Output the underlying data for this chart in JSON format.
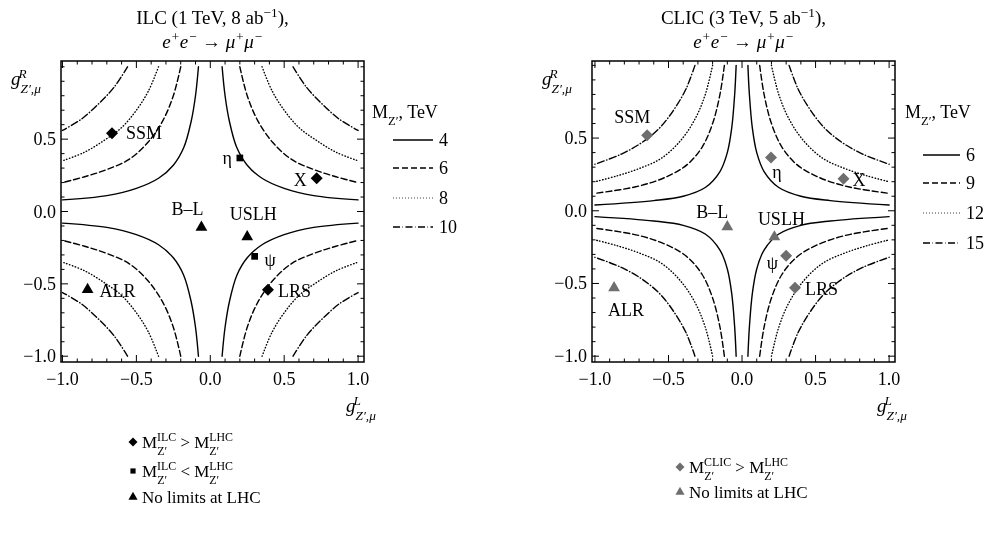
{
  "chart_data": [
    {
      "type": "line",
      "title": "ILC (1 TeV, 8 ab$^{−1}$),",
      "subtitle": "e$^{+}$e$^{−}$ → μ$^{+}$μ$^{−}$",
      "xlabel": "g$_{Z′,μ}$$^{L}$",
      "ylabel": "g$_{Z′,μ}$$^{R}$",
      "legend_title": "M$_{Z′}$, TeV",
      "legend": "right",
      "xlim": [
        -1.01,
        1.04
      ],
      "ylim": [
        -1.04,
        1.04
      ],
      "xticks": [
        {
          "value": -1,
          "label": "−1.0"
        },
        {
          "value": -0.9,
          "label": null
        },
        {
          "value": -0.8,
          "label": null
        },
        {
          "value": -0.7,
          "label": null
        },
        {
          "value": -0.6,
          "label": null
        },
        {
          "value": -0.5,
          "label": "−0.5"
        },
        {
          "value": -0.4,
          "label": null
        },
        {
          "value": -0.3,
          "label": null
        },
        {
          "value": -0.2,
          "label": null
        },
        {
          "value": -0.1,
          "label": null
        },
        {
          "value": 0,
          "label": "0.0"
        },
        {
          "value": 0.1,
          "label": null
        },
        {
          "value": 0.2,
          "label": null
        },
        {
          "value": 0.3,
          "label": null
        },
        {
          "value": 0.4,
          "label": null
        },
        {
          "value": 0.5,
          "label": "0.5"
        },
        {
          "value": 0.6,
          "label": null
        },
        {
          "value": 0.7,
          "label": null
        },
        {
          "value": 0.8,
          "label": null
        },
        {
          "value": 0.9,
          "label": null
        },
        {
          "value": 1,
          "label": "1.0"
        }
      ],
      "yticks": [
        {
          "value": -1,
          "label": "−1.0"
        },
        {
          "value": -0.9,
          "label": null
        },
        {
          "value": -0.8,
          "label": null
        },
        {
          "value": -0.7,
          "label": null
        },
        {
          "value": -0.6,
          "label": null
        },
        {
          "value": -0.5,
          "label": "−0.5"
        },
        {
          "value": -0.4,
          "label": null
        },
        {
          "value": -0.3,
          "label": null
        },
        {
          "value": -0.2,
          "label": null
        },
        {
          "value": -0.1,
          "label": null
        },
        {
          "value": 0,
          "label": "0.0"
        },
        {
          "value": 0.1,
          "label": null
        },
        {
          "value": 0.2,
          "label": null
        },
        {
          "value": 0.3,
          "label": null
        },
        {
          "value": 0.4,
          "label": null
        },
        {
          "value": 0.5,
          "label": "0.5"
        },
        {
          "value": 0.6,
          "label": null
        },
        {
          "value": 0.7,
          "label": null
        },
        {
          "value": 0.8,
          "label": null
        },
        {
          "value": 0.9,
          "label": null
        },
        {
          "value": 1,
          "label": null
        }
      ],
      "series": [
        {
          "name": "4",
          "type": "line",
          "line_style": "solid",
          "color": "#000000",
          "x": [
            0.08,
            0.1,
            0.13,
            0.18,
            0.25,
            0.35,
            0.5,
            0.7,
            1.0,
            null,
            -0.08,
            -0.1,
            -0.13,
            -0.18,
            -0.25,
            -0.35,
            -0.5,
            -0.7,
            -1.0,
            null,
            -0.08,
            -0.1,
            -0.13,
            -0.18,
            -0.25,
            -0.35,
            -0.5,
            -0.7,
            -1.0,
            null,
            0.08,
            0.1,
            0.13,
            0.18,
            0.25,
            0.35,
            0.5,
            0.7,
            1.0
          ],
          "values": [
            1.0,
            0.8,
            0.62,
            0.44,
            0.32,
            0.23,
            0.16,
            0.11,
            0.08,
            null,
            1.0,
            0.8,
            0.62,
            0.44,
            0.32,
            0.23,
            0.16,
            0.11,
            0.08,
            null,
            -1.0,
            -0.8,
            -0.62,
            -0.44,
            -0.32,
            -0.23,
            -0.16,
            -0.11,
            -0.08,
            null,
            -1.0,
            -0.8,
            -0.62,
            -0.44,
            -0.32,
            -0.23,
            -0.16,
            -0.11,
            -0.08
          ]
        },
        {
          "name": "6",
          "type": "line",
          "line_style": "dashed",
          "color": "#000000",
          "x": [
            0.2,
            0.25,
            0.32,
            0.42,
            0.55,
            0.7,
            0.85,
            1.0,
            null,
            -0.2,
            -0.25,
            -0.32,
            -0.42,
            -0.55,
            -0.7,
            -0.85,
            -1.0,
            null,
            -0.2,
            -0.25,
            -0.32,
            -0.42,
            -0.55,
            -0.7,
            -0.85,
            -1.0,
            null,
            0.2,
            0.25,
            0.32,
            0.42,
            0.55,
            0.7,
            0.85,
            1.0
          ],
          "values": [
            1.0,
            0.8,
            0.63,
            0.48,
            0.36,
            0.29,
            0.24,
            0.2,
            null,
            1.0,
            0.8,
            0.63,
            0.48,
            0.36,
            0.29,
            0.24,
            0.2,
            null,
            -1.0,
            -0.8,
            -0.63,
            -0.48,
            -0.36,
            -0.29,
            -0.24,
            -0.2,
            null,
            -1.0,
            -0.8,
            -0.63,
            -0.48,
            -0.36,
            -0.29,
            -0.24,
            -0.2
          ]
        },
        {
          "name": "8",
          "type": "line",
          "line_style": "dotted",
          "color": "#000000",
          "x": [
            0.35,
            0.42,
            0.5,
            0.6,
            0.72,
            0.85,
            1.0,
            null,
            -0.35,
            -0.42,
            -0.5,
            -0.6,
            -0.72,
            -0.85,
            -1.0,
            null,
            -0.35,
            -0.42,
            -0.5,
            -0.6,
            -0.72,
            -0.85,
            -1.0,
            null,
            0.35,
            0.42,
            0.5,
            0.6,
            0.72,
            0.85,
            1.0
          ],
          "values": [
            1.0,
            0.83,
            0.7,
            0.58,
            0.49,
            0.41,
            0.35,
            null,
            1.0,
            0.83,
            0.7,
            0.58,
            0.49,
            0.41,
            0.35,
            null,
            -1.0,
            -0.83,
            -0.7,
            -0.58,
            -0.49,
            -0.41,
            -0.35,
            null,
            -1.0,
            -0.83,
            -0.7,
            -0.58,
            -0.49,
            -0.41,
            -0.35
          ]
        },
        {
          "name": "10",
          "type": "line",
          "line_style": "dashdot",
          "color": "#000000",
          "x": [
            0.56,
            0.65,
            0.75,
            0.87,
            1.0,
            null,
            -0.56,
            -0.65,
            -0.75,
            -0.87,
            -1.0,
            null,
            -0.56,
            -0.65,
            -0.75,
            -0.87,
            -1.0,
            null,
            0.56,
            0.65,
            0.75,
            0.87,
            1.0
          ],
          "values": [
            1.0,
            0.86,
            0.75,
            0.64,
            0.56,
            null,
            1.0,
            0.86,
            0.75,
            0.64,
            0.56,
            null,
            -1.0,
            -0.86,
            -0.75,
            -0.64,
            -0.56,
            null,
            -1.0,
            -0.86,
            -0.75,
            -0.64,
            -0.56
          ]
        },
        {
          "name": "M$_{Z′}$$^{ILC}$ > M$_{Z′}$$^{LHC}$",
          "type": "scatter",
          "marker": "diamond",
          "color": "#000000",
          "x": [
            -0.665,
            0.72,
            0.39
          ],
          "values": [
            0.54,
            0.23,
            -0.54
          ]
        },
        {
          "name": "M$_{Z′}$$^{ILC}$ < M$_{Z′}$$^{LHC}$",
          "type": "scatter",
          "marker": "square",
          "color": "#000000",
          "x": [
            0.2,
            0.3
          ],
          "values": [
            0.37,
            -0.31
          ]
        },
        {
          "name": "No limits at LHC",
          "type": "scatter",
          "marker": "triangle",
          "color": "#000000",
          "x": [
            -0.06,
            0.25,
            -0.83
          ],
          "values": [
            -0.11,
            -0.175,
            -0.54
          ]
        }
      ],
      "annotations": [
        {
          "text": "SSM",
          "x": -0.665,
          "y": 0.54
        },
        {
          "text": "η",
          "x": 0.2,
          "y": 0.37
        },
        {
          "text": "X",
          "x": 0.72,
          "y": 0.23
        },
        {
          "text": "B–L",
          "x": -0.06,
          "y": -0.11
        },
        {
          "text": "USLH",
          "x": 0.25,
          "y": -0.175
        },
        {
          "text": "ψ",
          "x": 0.3,
          "y": -0.31
        },
        {
          "text": "LRS",
          "x": 0.39,
          "y": -0.54
        },
        {
          "text": "ALR",
          "x": -0.83,
          "y": -0.54
        }
      ]
    },
    {
      "type": "line",
      "title": "CLIC (3 TeV, 5 ab$^{−1}$),",
      "subtitle": "e$^{+}$e$^{−}$ → μ$^{+}$μ$^{−}$",
      "xlabel": "g$_{Z′,μ}$$^{L}$",
      "ylabel": "g$_{Z′,μ}$$^{R}$",
      "legend_title": "M$_{Z′}$, TeV",
      "legend": "right",
      "xlim": [
        -1.02,
        1.04
      ],
      "ylim": [
        -1.04,
        1.03
      ],
      "xticks": [
        {
          "value": -1,
          "label": "−1.0"
        },
        {
          "value": -0.9,
          "label": null
        },
        {
          "value": -0.8,
          "label": null
        },
        {
          "value": -0.7,
          "label": null
        },
        {
          "value": -0.6,
          "label": null
        },
        {
          "value": -0.5,
          "label": "−0.5"
        },
        {
          "value": -0.4,
          "label": null
        },
        {
          "value": -0.3,
          "label": null
        },
        {
          "value": -0.2,
          "label": null
        },
        {
          "value": -0.1,
          "label": null
        },
        {
          "value": 0,
          "label": "0.0"
        },
        {
          "value": 0.1,
          "label": null
        },
        {
          "value": 0.2,
          "label": null
        },
        {
          "value": 0.3,
          "label": null
        },
        {
          "value": 0.4,
          "label": null
        },
        {
          "value": 0.5,
          "label": "0.5"
        },
        {
          "value": 0.6,
          "label": null
        },
        {
          "value": 0.7,
          "label": null
        },
        {
          "value": 0.8,
          "label": null
        },
        {
          "value": 0.9,
          "label": null
        },
        {
          "value": 1,
          "label": "1.0"
        }
      ],
      "yticks": [
        {
          "value": -1,
          "label": "−1.0"
        },
        {
          "value": -0.9,
          "label": null
        },
        {
          "value": -0.8,
          "label": null
        },
        {
          "value": -0.7,
          "label": null
        },
        {
          "value": -0.6,
          "label": null
        },
        {
          "value": -0.5,
          "label": "−0.5"
        },
        {
          "value": -0.4,
          "label": null
        },
        {
          "value": -0.3,
          "label": null
        },
        {
          "value": -0.2,
          "label": null
        },
        {
          "value": -0.1,
          "label": null
        },
        {
          "value": 0,
          "label": "0.0"
        },
        {
          "value": 0.1,
          "label": null
        },
        {
          "value": 0.2,
          "label": null
        },
        {
          "value": 0.3,
          "label": null
        },
        {
          "value": 0.4,
          "label": null
        },
        {
          "value": 0.5,
          "label": "0.5"
        },
        {
          "value": 0.6,
          "label": null
        },
        {
          "value": 0.7,
          "label": null
        },
        {
          "value": 0.8,
          "label": null
        },
        {
          "value": 0.9,
          "label": null
        },
        {
          "value": 1,
          "label": null
        }
      ],
      "series": [
        {
          "name": "6",
          "type": "line",
          "line_style": "solid",
          "color": "#000000",
          "x": [
            0.04,
            0.05,
            0.07,
            0.1,
            0.15,
            0.25,
            0.4,
            0.6,
            1.0,
            null,
            -0.04,
            -0.05,
            -0.07,
            -0.1,
            -0.15,
            -0.25,
            -0.4,
            -0.6,
            -1.0,
            null,
            -0.04,
            -0.05,
            -0.07,
            -0.1,
            -0.15,
            -0.25,
            -0.4,
            -0.6,
            -1.0,
            null,
            0.04,
            0.05,
            0.07,
            0.1,
            0.15,
            0.25,
            0.4,
            0.6,
            1.0
          ],
          "values": [
            1.0,
            0.8,
            0.57,
            0.4,
            0.27,
            0.16,
            0.1,
            0.07,
            0.04,
            null,
            1.0,
            0.8,
            0.57,
            0.4,
            0.27,
            0.16,
            0.1,
            0.07,
            0.04,
            null,
            -1.0,
            -0.8,
            -0.57,
            -0.4,
            -0.27,
            -0.16,
            -0.1,
            -0.07,
            -0.04,
            null,
            -1.0,
            -0.8,
            -0.57,
            -0.4,
            -0.27,
            -0.16,
            -0.1,
            -0.07,
            -0.04
          ]
        },
        {
          "name": "9",
          "type": "line",
          "line_style": "dashed",
          "color": "#000000",
          "x": [
            0.12,
            0.15,
            0.2,
            0.27,
            0.37,
            0.5,
            0.7,
            1.0,
            null,
            -0.12,
            -0.15,
            -0.2,
            -0.27,
            -0.37,
            -0.5,
            -0.7,
            -1.0,
            null,
            -0.12,
            -0.15,
            -0.2,
            -0.27,
            -0.37,
            -0.5,
            -0.7,
            -1.0,
            null,
            0.12,
            0.15,
            0.2,
            0.27,
            0.37,
            0.5,
            0.7,
            1.0
          ],
          "values": [
            1.0,
            0.8,
            0.6,
            0.44,
            0.32,
            0.24,
            0.17,
            0.12,
            null,
            1.0,
            0.8,
            0.6,
            0.44,
            0.32,
            0.24,
            0.17,
            0.12,
            null,
            -1.0,
            -0.8,
            -0.6,
            -0.44,
            -0.32,
            -0.24,
            -0.17,
            -0.12,
            null,
            -1.0,
            -0.8,
            -0.6,
            -0.44,
            -0.32,
            -0.24,
            -0.17,
            -0.12
          ]
        },
        {
          "name": "12",
          "type": "line",
          "line_style": "dotted",
          "color": "#000000",
          "x": [
            0.2,
            0.25,
            0.32,
            0.42,
            0.55,
            0.7,
            0.85,
            1.0,
            null,
            -0.2,
            -0.25,
            -0.32,
            -0.42,
            -0.55,
            -0.7,
            -0.85,
            -1.0,
            null,
            -0.2,
            -0.25,
            -0.32,
            -0.42,
            -0.55,
            -0.7,
            -0.85,
            -1.0,
            null,
            0.2,
            0.25,
            0.32,
            0.42,
            0.55,
            0.7,
            0.85,
            1.0
          ],
          "values": [
            1.0,
            0.8,
            0.63,
            0.48,
            0.36,
            0.29,
            0.24,
            0.2,
            null,
            1.0,
            0.8,
            0.63,
            0.48,
            0.36,
            0.29,
            0.24,
            0.2,
            null,
            -1.0,
            -0.8,
            -0.63,
            -0.48,
            -0.36,
            -0.29,
            -0.24,
            -0.2,
            null,
            -1.0,
            -0.8,
            -0.63,
            -0.48,
            -0.36,
            -0.29,
            -0.24,
            -0.2
          ]
        },
        {
          "name": "15",
          "type": "line",
          "line_style": "dashdot",
          "color": "#000000",
          "x": [
            0.32,
            0.38,
            0.46,
            0.56,
            0.68,
            0.82,
            1.0,
            null,
            -0.32,
            -0.38,
            -0.46,
            -0.56,
            -0.68,
            -0.82,
            -1.0,
            null,
            -0.32,
            -0.38,
            -0.46,
            -0.56,
            -0.68,
            -0.82,
            -1.0,
            null,
            0.32,
            0.38,
            0.46,
            0.56,
            0.68,
            0.82,
            1.0
          ],
          "values": [
            1.0,
            0.84,
            0.7,
            0.57,
            0.47,
            0.39,
            0.32,
            null,
            1.0,
            0.84,
            0.7,
            0.57,
            0.47,
            0.39,
            0.32,
            null,
            -1.0,
            -0.84,
            -0.7,
            -0.57,
            -0.47,
            -0.39,
            -0.32,
            null,
            -1.0,
            -0.84,
            -0.7,
            -0.57,
            -0.47,
            -0.39,
            -0.32
          ]
        },
        {
          "name": "M$_{Z′}$$^{CLIC}$ > M$_{Z′}$$^{LHC}$",
          "type": "scatter",
          "marker": "diamond",
          "color": "#6e6e6e",
          "x": [
            -0.645,
            0.197,
            0.69,
            0.3,
            0.36
          ],
          "values": [
            0.52,
            0.366,
            0.22,
            -0.31,
            -0.53
          ]
        },
        {
          "name": "No limits at LHC",
          "type": "scatter",
          "marker": "triangle",
          "color": "#6e6e6e",
          "x": [
            -0.1,
            0.22,
            -0.87
          ],
          "values": [
            -0.11,
            -0.18,
            -0.53
          ]
        }
      ],
      "annotations": [
        {
          "text": "SSM",
          "x": -0.645,
          "y": 0.52
        },
        {
          "text": "η",
          "x": 0.197,
          "y": 0.366
        },
        {
          "text": "X",
          "x": 0.69,
          "y": 0.22
        },
        {
          "text": "B–L",
          "x": -0.1,
          "y": -0.11
        },
        {
          "text": "USLH",
          "x": 0.22,
          "y": -0.18
        },
        {
          "text": "ψ",
          "x": 0.3,
          "y": -0.31
        },
        {
          "text": "LRS",
          "x": 0.36,
          "y": -0.53
        },
        {
          "text": "ALR",
          "x": -0.87,
          "y": -0.53
        }
      ]
    }
  ]
}
